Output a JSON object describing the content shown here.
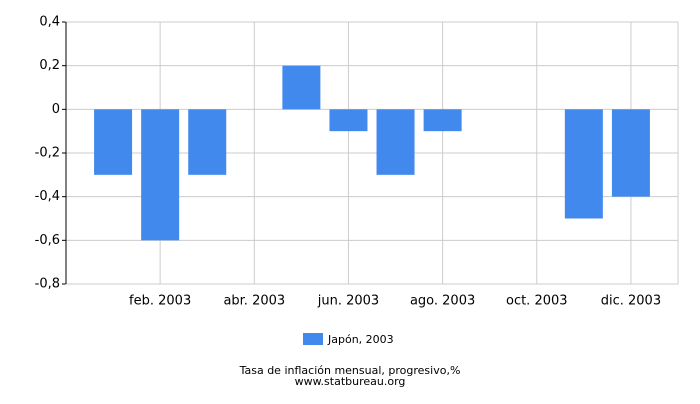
{
  "chart_data": {
    "type": "bar",
    "categories": [
      null,
      "feb. 2003",
      null,
      "abr. 2003",
      null,
      "jun. 2003",
      null,
      "ago. 2003",
      null,
      "oct. 2003",
      null,
      "dic. 2003"
    ],
    "series": [
      {
        "name": "Japón, 2003",
        "color": "#4189ec",
        "values": [
          -0.3,
          -0.6,
          -0.3,
          0,
          0.2,
          -0.1,
          -0.3,
          -0.1,
          0,
          0,
          -0.5,
          -0.4
        ]
      }
    ],
    "ylim": [
      -0.8,
      0.4
    ],
    "yticks": [
      {
        "value": -0.8,
        "label": "-0,8"
      },
      {
        "value": -0.6,
        "label": "-0,6"
      },
      {
        "value": -0.4,
        "label": "-0,4"
      },
      {
        "value": -0.2,
        "label": "-0,2"
      },
      0,
      {
        "value": 0.2,
        "label": "0,2"
      },
      {
        "value": 0.4,
        "label": "0,4"
      }
    ],
    "grid": true,
    "title": "Tasa de inflación mensual, progresivo,%",
    "source": "www.statbureau.org"
  }
}
